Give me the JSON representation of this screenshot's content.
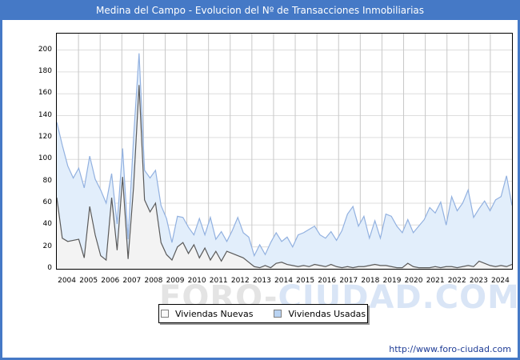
{
  "title": "Medina del Campo - Evolucion del Nº de Transacciones Inmobiliarias",
  "watermark": {
    "left": "FORO",
    "dash": "-",
    "right": "CIUDAD.COM"
  },
  "footer": {
    "url": "http://www.foro-ciudad.com"
  },
  "colors": {
    "frame_blue": "#4579c6",
    "titlebar_bg": "#4579c6",
    "titlebar_text": "#ffffff",
    "plot_border": "#000000",
    "hgrid": "#dedede",
    "vgrid": "#c8c8c8",
    "url_text": "#1e3c96"
  },
  "legend": {
    "items": [
      {
        "label": "Viviendas Nuevas",
        "swatch": "#fafafa"
      },
      {
        "label": "Viviendas Usadas",
        "swatch": "#b9d3f2"
      }
    ]
  },
  "chart_data": {
    "type": "area",
    "stacked": true,
    "title": "Medina del Campo - Evolucion del Nº de Transacciones Inmobiliarias",
    "xlabel": "",
    "ylabel": "",
    "x_years": [
      "2004",
      "2005",
      "2006",
      "2007",
      "2008",
      "2009",
      "2010",
      "2011",
      "2012",
      "2013",
      "2014",
      "2015",
      "2016",
      "2017",
      "2018",
      "2019",
      "2020",
      "2021",
      "2022",
      "2023",
      "2024"
    ],
    "points_per_year": 4,
    "ylim": [
      0,
      215
    ],
    "yticks": [
      0,
      20,
      40,
      60,
      80,
      100,
      120,
      140,
      160,
      180,
      200
    ],
    "grid": true,
    "legend_position": "bottom",
    "series": [
      {
        "name": "Viviendas Nuevas",
        "line_color": "#5a5a5a",
        "fill_color": "#f3f3f3",
        "values": [
          65,
          28,
          25,
          26,
          27,
          10,
          57,
          31,
          12,
          8,
          65,
          17,
          84,
          9,
          75,
          168,
          63,
          52,
          60,
          24,
          13,
          8,
          20,
          24,
          14,
          22,
          10,
          19,
          8,
          16,
          7,
          16,
          14,
          12,
          10,
          6,
          2,
          1,
          3,
          1,
          5,
          6,
          4,
          3,
          2,
          3,
          2,
          4,
          3,
          2,
          4,
          2,
          1,
          2,
          1,
          2,
          2,
          3,
          4,
          3,
          3,
          2,
          1,
          1,
          5,
          2,
          1,
          1,
          1,
          2,
          1,
          2,
          2,
          1,
          2,
          3,
          2,
          7,
          5,
          3,
          2,
          3,
          2,
          4
        ]
      },
      {
        "name": "Viviendas Usadas",
        "line_color": "#92b1e0",
        "fill_color": "#e2eefb",
        "values": [
          69,
          85,
          69,
          57,
          65,
          64,
          46,
          51,
          60,
          52,
          22,
          24,
          26,
          18,
          45,
          29,
          27,
          31,
          30,
          34,
          33,
          16,
          28,
          23,
          24,
          9,
          36,
          12,
          39,
          11,
          27,
          9,
          21,
          35,
          23,
          23,
          10,
          21,
          10,
          23,
          28,
          19,
          25,
          17,
          29,
          30,
          34,
          35,
          28,
          26,
          30,
          24,
          34,
          48,
          56,
          37,
          46,
          25,
          40,
          25,
          47,
          46,
          38,
          32,
          40,
          31,
          38,
          44,
          55,
          49,
          60,
          38,
          64,
          52,
          58,
          69,
          45,
          48,
          57,
          50,
          61,
          63,
          83,
          54
        ]
      }
    ]
  }
}
